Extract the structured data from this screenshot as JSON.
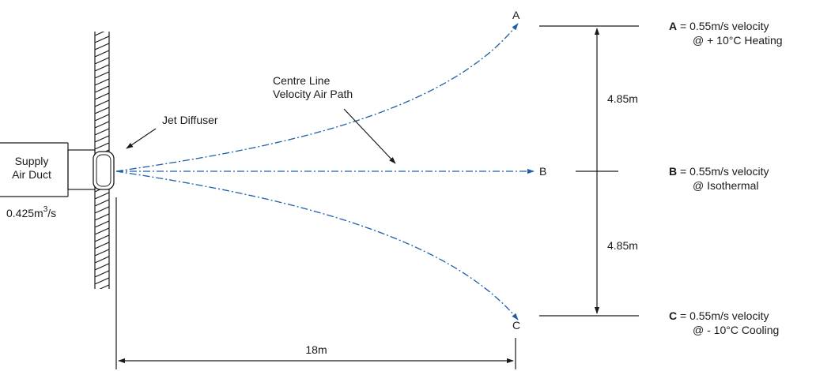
{
  "colors": {
    "line": "#1a1a1a",
    "airflow": "#1f5fa8"
  },
  "duct": {
    "label_line1": "Supply",
    "label_line2": "Air Duct",
    "flow_prefix": "0.425m",
    "flow_sup": "3",
    "flow_suffix": "/s"
  },
  "diffuser": {
    "label": "Jet Diffuser"
  },
  "centre_line": {
    "label_line1": "Centre Line",
    "label_line2": "Velocity Air Path"
  },
  "points": {
    "a": "A",
    "b": "B",
    "c": "C"
  },
  "dimensions": {
    "upper": "4.85m",
    "lower": "4.85m",
    "throw": "18m"
  },
  "legend": [
    {
      "letter": "A",
      "eq": " = 0.55m/s velocity",
      "condition": "@ + 10°C Heating"
    },
    {
      "letter": "B",
      "eq": " = 0.55m/s velocity",
      "condition": "@ Isothermal"
    },
    {
      "letter": "C",
      "eq": " = 0.55m/s velocity",
      "condition": "@ - 10°C Cooling"
    }
  ]
}
